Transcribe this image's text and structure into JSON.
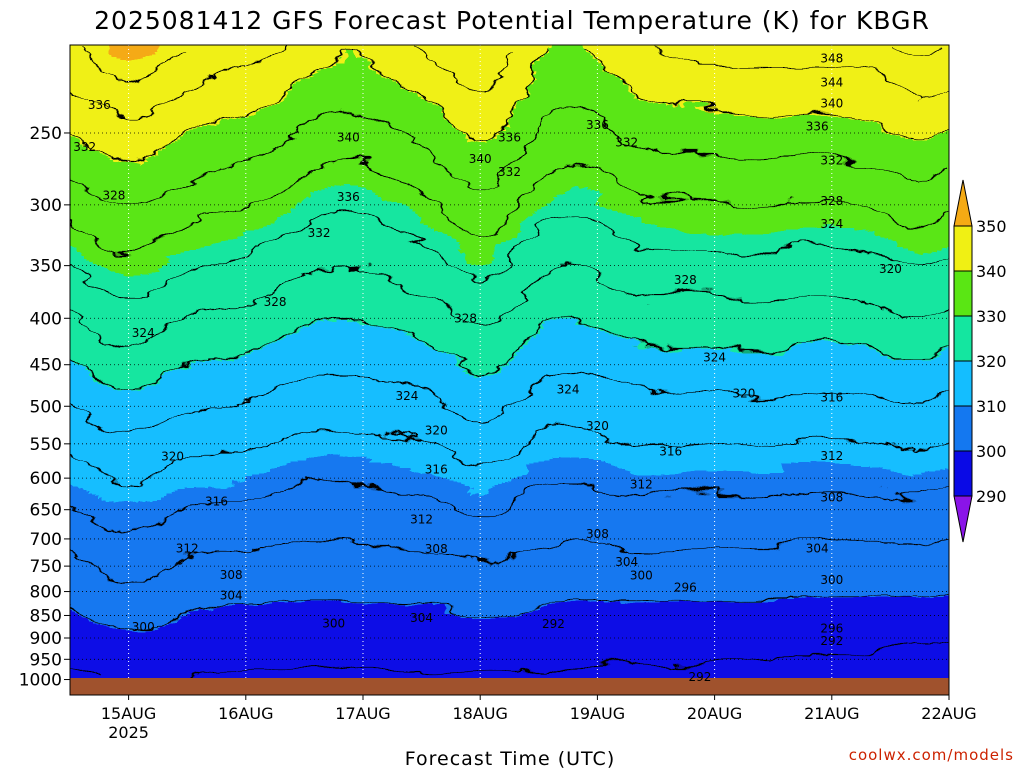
{
  "chart_data": {
    "type": "contour",
    "title": "2025081412 GFS Forecast Potential Temperature (K) for KBGR",
    "xlabel": "Forecast Time (UTC)",
    "ylabel": "",
    "credit": "coolwx.com/models",
    "y_scale": "log-pressure",
    "ylim": [
      200,
      1040
    ],
    "y_ticks": [
      250,
      300,
      350,
      400,
      450,
      500,
      550,
      600,
      650,
      700,
      750,
      800,
      850,
      900,
      950,
      1000
    ],
    "x_range": [
      "2025-08-14T12",
      "2025-08-22T00"
    ],
    "x_ticks": [
      {
        "time": "2025-08-15T00",
        "label": "15AUG",
        "sublabel": "2025"
      },
      {
        "time": "2025-08-16T00",
        "label": "16AUG",
        "sublabel": ""
      },
      {
        "time": "2025-08-17T00",
        "label": "17AUG",
        "sublabel": ""
      },
      {
        "time": "2025-08-18T00",
        "label": "18AUG",
        "sublabel": ""
      },
      {
        "time": "2025-08-19T00",
        "label": "19AUG",
        "sublabel": ""
      },
      {
        "time": "2025-08-20T00",
        "label": "20AUG",
        "sublabel": ""
      },
      {
        "time": "2025-08-21T00",
        "label": "21AUG",
        "sublabel": ""
      },
      {
        "time": "2025-08-22T00",
        "label": "22AUG",
        "sublabel": ""
      }
    ],
    "grid": true,
    "contour_interval": 4,
    "colorbar": {
      "ticks": [
        290,
        300,
        310,
        320,
        330,
        340,
        350
      ],
      "bins": [
        {
          "from": 280,
          "to": 290,
          "color": "#8a14e8"
        },
        {
          "from": 290,
          "to": 300,
          "color": "#0a0ae6"
        },
        {
          "from": 300,
          "to": 310,
          "color": "#1478f0"
        },
        {
          "from": 310,
          "to": 320,
          "color": "#14beff"
        },
        {
          "from": 320,
          "to": 330,
          "color": "#14e6a0"
        },
        {
          "from": 330,
          "to": 340,
          "color": "#5ae614"
        },
        {
          "from": 340,
          "to": 350,
          "color": "#f0f014"
        },
        {
          "from": 350,
          "to": 360,
          "color": "#f5aa14"
        }
      ]
    },
    "contour_labels": [
      {
        "value": 348,
        "time": "2025-08-21T00",
        "p": 207
      },
      {
        "value": 344,
        "time": "2025-08-21T00",
        "p": 220
      },
      {
        "value": 340,
        "time": "2025-08-21T00",
        "p": 232
      },
      {
        "value": 336,
        "time": "2025-08-14T18",
        "p": 233
      },
      {
        "value": 336,
        "time": "2025-08-18T06",
        "p": 253
      },
      {
        "value": 336,
        "time": "2025-08-19T00",
        "p": 245
      },
      {
        "value": 336,
        "time": "2025-08-20T21",
        "p": 246
      },
      {
        "value": 340,
        "time": "2025-08-16T21",
        "p": 253
      },
      {
        "value": 340,
        "time": "2025-08-18T00",
        "p": 267
      },
      {
        "value": 332,
        "time": "2025-08-14T15",
        "p": 259
      },
      {
        "value": 332,
        "time": "2025-08-18T06",
        "p": 276
      },
      {
        "value": 332,
        "time": "2025-08-19T06",
        "p": 256
      },
      {
        "value": 332,
        "time": "2025-08-21T00",
        "p": 268
      },
      {
        "value": 336,
        "time": "2025-08-16T21",
        "p": 294
      },
      {
        "value": 328,
        "time": "2025-08-14T21",
        "p": 293
      },
      {
        "value": 328,
        "time": "2025-08-21T00",
        "p": 297
      },
      {
        "value": 324,
        "time": "2025-08-21T00",
        "p": 315
      },
      {
        "value": 332,
        "time": "2025-08-16T15",
        "p": 322
      },
      {
        "value": 320,
        "time": "2025-08-21T12",
        "p": 353
      },
      {
        "value": 328,
        "time": "2025-08-19T18",
        "p": 363
      },
      {
        "value": 328,
        "time": "2025-08-16T06",
        "p": 384
      },
      {
        "value": 328,
        "time": "2025-08-17T21",
        "p": 400
      },
      {
        "value": 324,
        "time": "2025-08-15T03",
        "p": 415
      },
      {
        "value": 324,
        "time": "2025-08-20T00",
        "p": 442
      },
      {
        "value": 320,
        "time": "2025-08-20T06",
        "p": 484
      },
      {
        "value": 316,
        "time": "2025-08-21T00",
        "p": 489
      },
      {
        "value": 324,
        "time": "2025-08-17T09",
        "p": 487
      },
      {
        "value": 324,
        "time": "2025-08-18T18",
        "p": 479
      },
      {
        "value": 320,
        "time": "2025-08-19T00",
        "p": 526
      },
      {
        "value": 320,
        "time": "2025-08-17T15",
        "p": 532
      },
      {
        "value": 320,
        "time": "2025-08-15T09",
        "p": 568
      },
      {
        "value": 316,
        "time": "2025-08-19T15",
        "p": 561
      },
      {
        "value": 312,
        "time": "2025-08-21T00",
        "p": 567
      },
      {
        "value": 316,
        "time": "2025-08-17T15",
        "p": 587
      },
      {
        "value": 312,
        "time": "2025-08-19T09",
        "p": 610
      },
      {
        "value": 316,
        "time": "2025-08-15T18",
        "p": 637
      },
      {
        "value": 308,
        "time": "2025-08-21T00",
        "p": 630
      },
      {
        "value": 312,
        "time": "2025-08-17T12",
        "p": 666
      },
      {
        "value": 308,
        "time": "2025-08-19T00",
        "p": 691
      },
      {
        "value": 312,
        "time": "2025-08-15T12",
        "p": 717
      },
      {
        "value": 308,
        "time": "2025-08-17T15",
        "p": 718
      },
      {
        "value": 304,
        "time": "2025-08-20T21",
        "p": 717
      },
      {
        "value": 304,
        "time": "2025-08-19T06",
        "p": 742
      },
      {
        "value": 308,
        "time": "2025-08-15T21",
        "p": 767
      },
      {
        "value": 300,
        "time": "2025-08-19T09",
        "p": 768
      },
      {
        "value": 296,
        "time": "2025-08-19T18",
        "p": 792
      },
      {
        "value": 300,
        "time": "2025-08-21T00",
        "p": 777
      },
      {
        "value": 304,
        "time": "2025-08-15T21",
        "p": 808
      },
      {
        "value": 300,
        "time": "2025-08-16T18",
        "p": 868
      },
      {
        "value": 304,
        "time": "2025-08-17T12",
        "p": 855
      },
      {
        "value": 292,
        "time": "2025-08-18T15",
        "p": 869
      },
      {
        "value": 300,
        "time": "2025-08-15T03",
        "p": 875
      },
      {
        "value": 296,
        "time": "2025-08-21T00",
        "p": 879
      },
      {
        "value": 292,
        "time": "2025-08-21T00",
        "p": 907
      },
      {
        "value": 292,
        "time": "2025-08-19T21",
        "p": 994
      }
    ],
    "ground_color": "#a0522d"
  }
}
